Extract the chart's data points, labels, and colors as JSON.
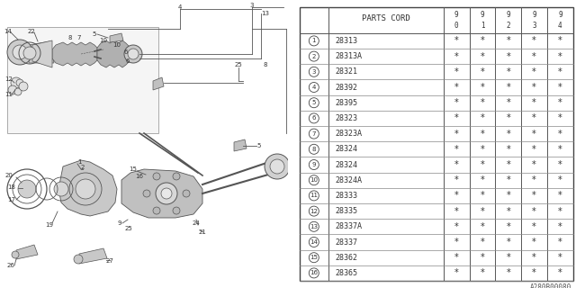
{
  "bg_color": "#ffffff",
  "parts_cord_header": "PARTS CORD",
  "year_cols": [
    "9\n0",
    "9\n1",
    "9\n2",
    "9\n3",
    "9\n4"
  ],
  "rows": [
    [
      "1",
      "28313"
    ],
    [
      "2",
      "28313A"
    ],
    [
      "3",
      "28321"
    ],
    [
      "4",
      "28392"
    ],
    [
      "5",
      "28395"
    ],
    [
      "6",
      "28323"
    ],
    [
      "7",
      "28323A"
    ],
    [
      "8",
      "28324"
    ],
    [
      "9",
      "28324"
    ],
    [
      "10",
      "28324A"
    ],
    [
      "11",
      "28333"
    ],
    [
      "12",
      "28335"
    ],
    [
      "13",
      "28337A"
    ],
    [
      "14",
      "28337"
    ],
    [
      "15",
      "28362"
    ],
    [
      "16",
      "28365"
    ]
  ],
  "star": "*",
  "footer": "A280B00080",
  "line_color": "#555555",
  "text_color": "#333333"
}
